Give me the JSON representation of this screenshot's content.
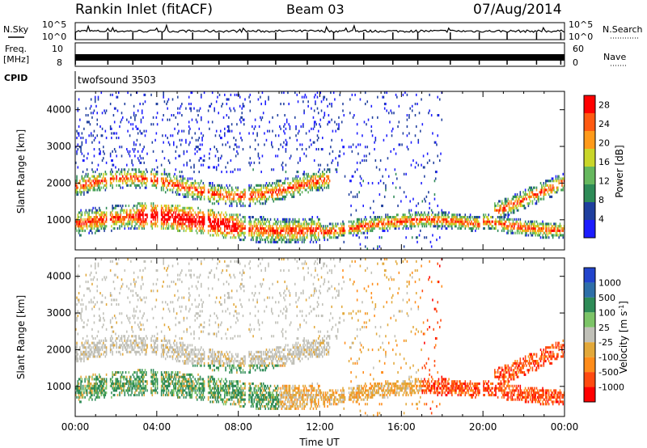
{
  "header": {
    "station": "Rankin Inlet (fitACF)",
    "beam": "Beam 03",
    "date": "07/Aug/2014"
  },
  "noise_panel": {
    "left_label": "N.Sky",
    "right_label": "N.Search",
    "left_ticks": [
      "10^5",
      "10^0"
    ],
    "right_ticks": [
      "10^5",
      "10^0"
    ]
  },
  "freq_panel": {
    "left_label_1": "Freq.",
    "left_label_2": "[MHz]",
    "left_ticks": [
      "10",
      "8"
    ],
    "right_label": "Nave",
    "right_ticks": [
      "60",
      "0"
    ]
  },
  "cpid_panel": {
    "label": "CPID",
    "program": "twofsound 3503"
  },
  "chart_data": [
    {
      "type": "heatmap",
      "name": "power",
      "xlabel": "Time UT",
      "ylabel": "Slant Range [km]",
      "x_ticks": [
        "00:00",
        "04:00",
        "08:00",
        "12:00",
        "16:00",
        "20:00",
        "00:00"
      ],
      "xlim_hours": [
        0,
        24
      ],
      "y_ticks": [
        1000,
        2000,
        3000,
        4000
      ],
      "ylim": [
        180,
        4500
      ],
      "colorbar_label": "Power [dB]",
      "colorbar_ticks": [
        4,
        8,
        12,
        16,
        20,
        24,
        28
      ],
      "colorbar_range": [
        0,
        30
      ],
      "colors": [
        "#1c1cff",
        "#1f3f9e",
        "#2e8b57",
        "#66b85e",
        "#c9d62a",
        "#ff9a1a",
        "#ff5a12",
        "#ff0000"
      ]
    },
    {
      "type": "heatmap",
      "name": "velocity",
      "xlabel": "Time UT",
      "ylabel": "Slant Range [km]",
      "x_ticks": [
        "00:00",
        "04:00",
        "08:00",
        "12:00",
        "16:00",
        "20:00",
        "00:00"
      ],
      "xlim_hours": [
        0,
        24
      ],
      "y_ticks": [
        1000,
        2000,
        3000,
        4000
      ],
      "ylim": [
        180,
        4500
      ],
      "colorbar_label": "Velocity [m s",
      "colorbar_label_sup": "-1",
      "colorbar_label_end": "]",
      "colorbar_ticks": [
        "1000",
        "500",
        "100",
        "25",
        "-25",
        "-100",
        "-500",
        "-1000"
      ],
      "colors": [
        "#2244cc",
        "#2e6fa8",
        "#2e8b57",
        "#7cc467",
        "#c0c0b8",
        "#e2a83a",
        "#ff8c1a",
        "#ff4a10",
        "#ff0000"
      ]
    }
  ]
}
